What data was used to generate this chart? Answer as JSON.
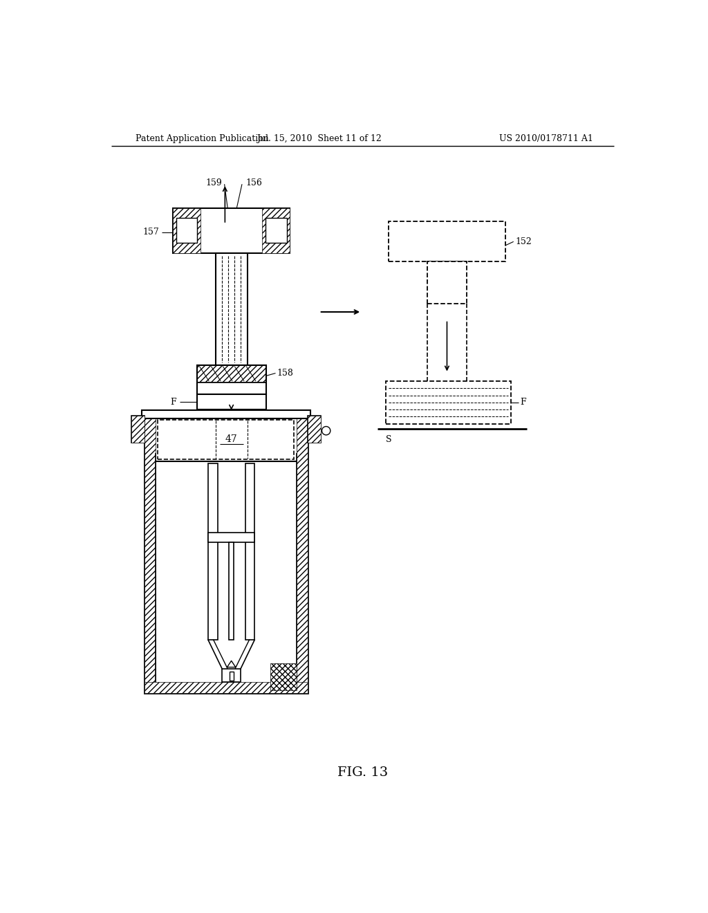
{
  "bg_color": "#ffffff",
  "header_left": "Patent Application Publication",
  "header_mid": "Jul. 15, 2010  Sheet 11 of 12",
  "header_right": "US 2010/0178711 A1",
  "figure_label": "FIG. 13"
}
